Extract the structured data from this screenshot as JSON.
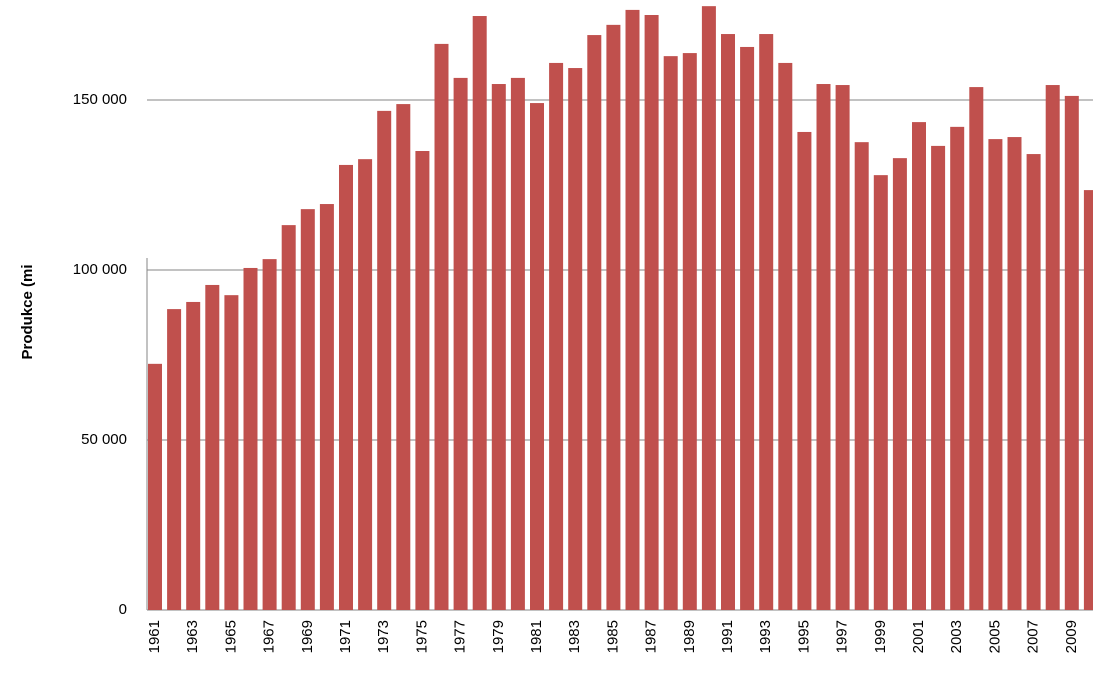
{
  "chart_data": {
    "type": "bar",
    "y_label": "Produkce (mi",
    "categories": [
      "1961",
      null,
      "1963",
      null,
      "1965",
      null,
      "1967",
      null,
      "1969",
      null,
      "1971",
      null,
      "1973",
      null,
      "1975",
      null,
      "1977",
      null,
      "1979",
      null,
      "1981",
      null,
      "1983",
      null,
      "1985",
      null,
      "1987",
      null,
      "1989",
      null,
      "1991",
      null,
      "1993",
      null,
      "1995",
      null,
      "1997",
      null,
      "1999",
      null,
      "2001",
      null,
      "2003",
      null,
      "2005",
      null,
      "2007",
      null,
      "2009",
      null
    ],
    "values": [
      72400,
      88500,
      90600,
      95600,
      92600,
      100600,
      103200,
      113200,
      117900,
      119400,
      130900,
      132600,
      146800,
      148800,
      135000,
      166500,
      156500,
      174700,
      154700,
      156500,
      149100,
      160900,
      159400,
      169100,
      172100,
      176500,
      175000,
      162900,
      163800,
      177600,
      169400,
      165600,
      169400,
      160900,
      140600,
      154700,
      154400,
      137600,
      127900,
      132900,
      143500,
      136500,
      142100,
      153800,
      138500,
      139100,
      134100,
      154400,
      151200,
      123500
    ],
    "color": "#c0504d",
    "ylim": [
      0,
      180000
    ],
    "yticks": [
      0,
      {
        "value": 50000,
        "label": "50 000"
      },
      {
        "value": 100000,
        "label": "100 000"
      },
      {
        "value": 150000,
        "label": "150 000"
      }
    ],
    "grid": true
  }
}
